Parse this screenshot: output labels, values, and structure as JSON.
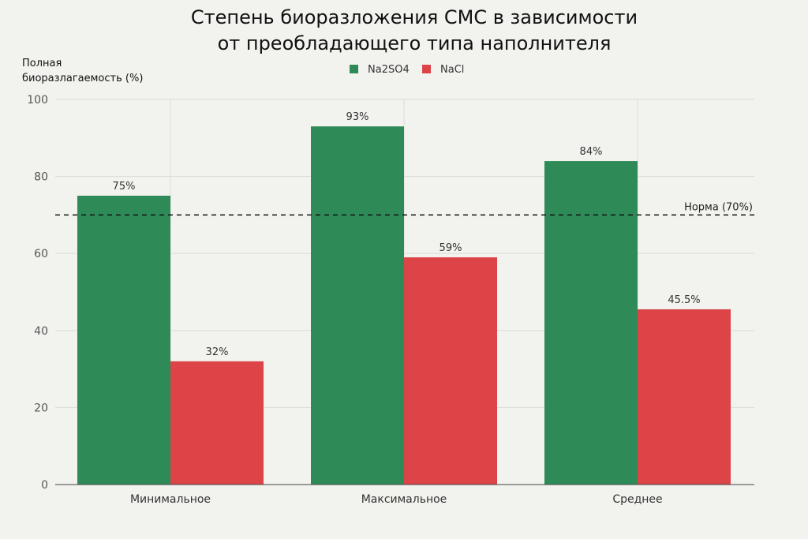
{
  "chart_data": {
    "type": "bar",
    "title_lines": [
      "Степень биоразложения СМС в зависимости",
      "от преобладающего типа наполнителя"
    ],
    "ylabel_lines": [
      "Полная",
      "биоразлагаемость (%)"
    ],
    "xlabel": "",
    "categories": [
      "Минимальное",
      "Максимальное",
      "Среднее"
    ],
    "series": [
      {
        "name": "Na2SO4",
        "values": [
          75,
          93,
          84
        ],
        "labels": [
          "75%",
          "93%",
          "84%"
        ],
        "color": "#2e8b57"
      },
      {
        "name": "NaCl",
        "values": [
          32,
          59,
          45.5
        ],
        "labels": [
          "32%",
          "59%",
          "45.5%"
        ],
        "color": "#dc4448"
      }
    ],
    "ylim": [
      0,
      100
    ],
    "yticks": [
      0,
      20,
      40,
      60,
      80,
      100
    ],
    "grid": true,
    "legend_position": "top-center",
    "reference_line": {
      "value": 70,
      "label": "Норма (70%)",
      "style": "dashed"
    }
  }
}
